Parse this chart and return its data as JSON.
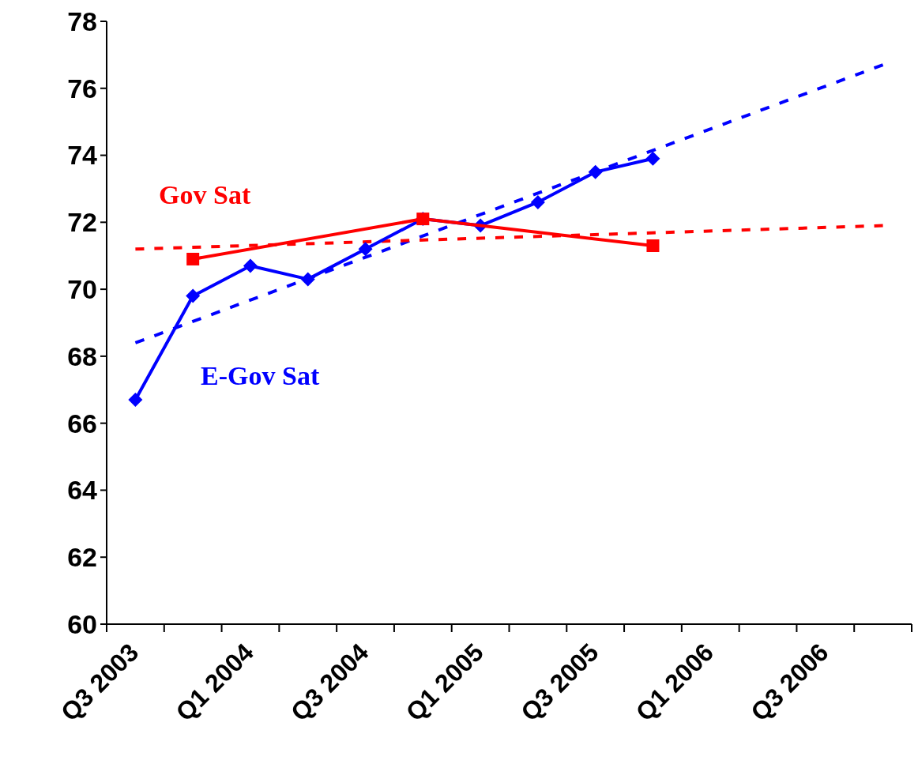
{
  "chart_data": {
    "type": "line",
    "categories": [
      "Q3 2003",
      null,
      "Q1 2004",
      null,
      "Q3 2004",
      null,
      "Q1 2005",
      null,
      "Q3 2005",
      null,
      "Q1 2006",
      null,
      "Q3 2006",
      null
    ],
    "ylim": [
      60,
      78
    ],
    "yticks": [
      60,
      62,
      64,
      66,
      68,
      70,
      72,
      74,
      76,
      78
    ],
    "grid": false,
    "series": [
      {
        "name": "Gov Sat",
        "color": "#ff0000",
        "marker": "square",
        "line_style": "solid",
        "values": [
          null,
          70.9,
          null,
          null,
          null,
          72.1,
          null,
          null,
          null,
          71.3,
          null,
          null,
          null,
          null
        ]
      },
      {
        "name": "E-Gov Sat",
        "color": "#0000ff",
        "marker": "diamond",
        "line_style": "solid",
        "values": [
          66.7,
          69.8,
          70.7,
          70.3,
          71.2,
          72.1,
          71.9,
          72.6,
          73.5,
          73.9,
          null,
          null,
          null,
          null
        ]
      },
      {
        "color": "#ff0000",
        "marker": "none",
        "line_style": "dashed",
        "values": [
          71.2,
          null,
          null,
          null,
          null,
          null,
          null,
          null,
          null,
          null,
          null,
          null,
          null,
          71.9
        ]
      },
      {
        "color": "#0000ff",
        "marker": "none",
        "line_style": "dashed",
        "values": [
          68.4,
          null,
          null,
          null,
          null,
          null,
          null,
          null,
          null,
          null,
          null,
          null,
          null,
          76.7
        ]
      }
    ]
  }
}
